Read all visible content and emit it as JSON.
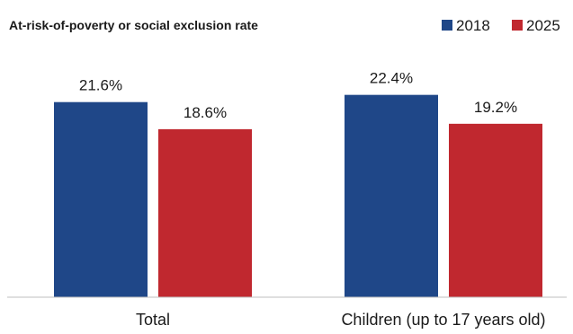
{
  "chart_data": {
    "type": "bar",
    "title": "At-risk-of-poverty or social exclusion rate",
    "xlabel": "",
    "ylabel": "",
    "categories": [
      "Total",
      "Children (up to 17 years old)"
    ],
    "series": [
      {
        "name": "2018",
        "values": [
          21.6,
          22.4
        ],
        "labels": [
          "21.6%",
          "22.4%"
        ],
        "color": "#1f4788"
      },
      {
        "name": "2025",
        "values": [
          18.6,
          19.2
        ],
        "labels": [
          "18.6%",
          "19.2%"
        ],
        "color": "#c0282f"
      }
    ],
    "ylim": [
      0,
      25
    ],
    "grid": false,
    "legend_position": "top-right",
    "axis_color": "#bfbfbf"
  }
}
